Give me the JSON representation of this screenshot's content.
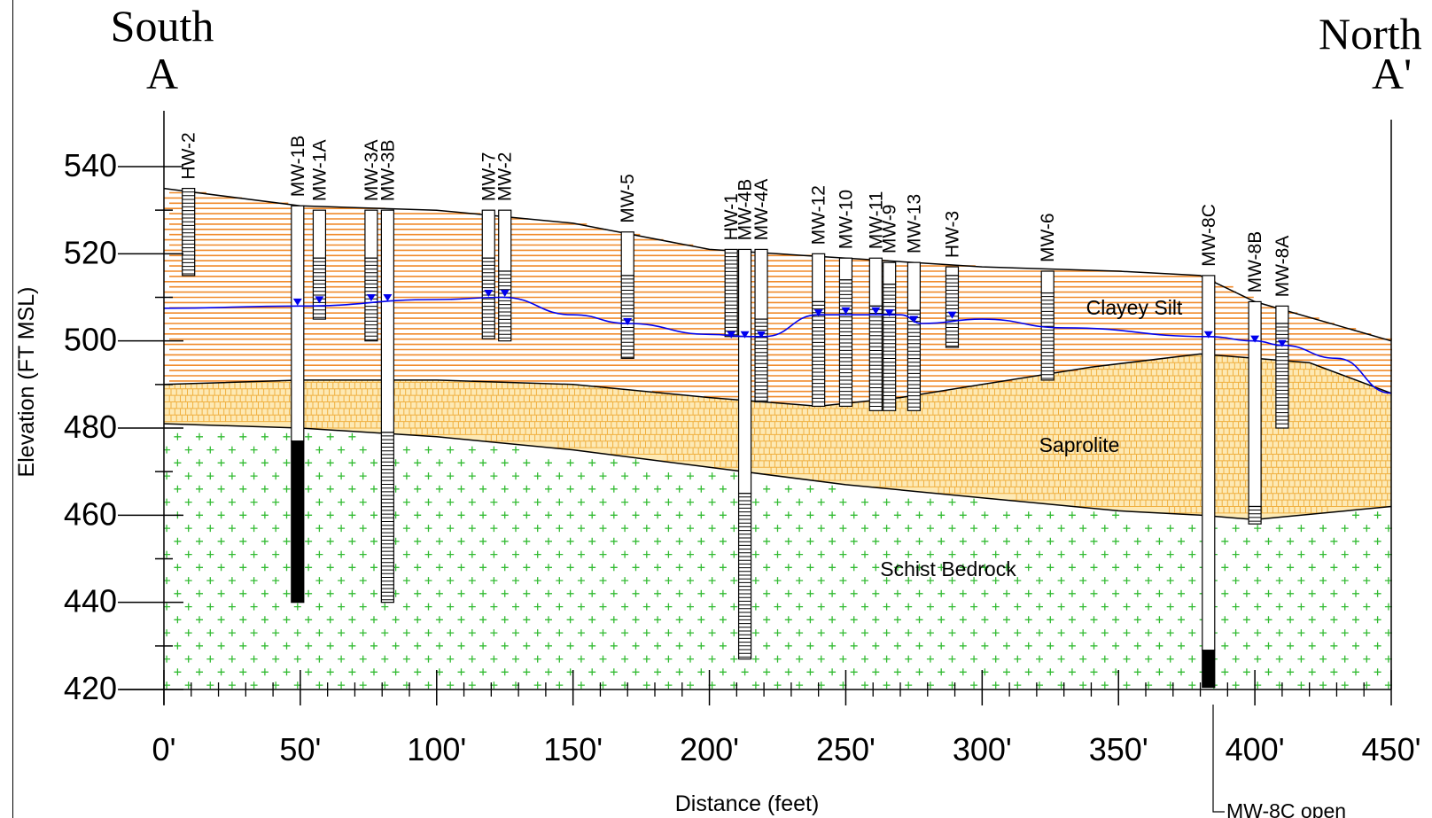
{
  "headings": {
    "south": "South",
    "a": "A",
    "north": "North",
    "a_prime": "A'"
  },
  "axes": {
    "ylabel": "Elevation (FT MSL)",
    "xlabel": "Distance (feet)",
    "y_ticks": [
      "540",
      "520",
      "500",
      "480",
      "460",
      "440",
      "420"
    ],
    "x_ticks": [
      "0'",
      "50'",
      "100'",
      "150'",
      "200'",
      "250'",
      "300'",
      "350'",
      "400'",
      "450'"
    ]
  },
  "layers": {
    "clayey_silt": "Clayey Silt",
    "saprolite": "Saprolite",
    "bedrock": "Schist Bedrock"
  },
  "note": "MW-8C open",
  "colors": {
    "silt": "#f08a2a",
    "saprolite_fill": "#fde9b4",
    "saprolite_brick": "#f0b040",
    "bedrock_cross": "#33bb33",
    "water_table": "#0000ee",
    "casing": "#000000"
  },
  "chart_data": {
    "type": "cross-section",
    "x_unit": "feet",
    "y_unit": "ft MSL",
    "xlim": [
      0,
      450
    ],
    "ylim": [
      420,
      540
    ],
    "ground_surface": [
      [
        0,
        535
      ],
      [
        50,
        531
      ],
      [
        100,
        530
      ],
      [
        150,
        527
      ],
      [
        200,
        521
      ],
      [
        250,
        519
      ],
      [
        300,
        517
      ],
      [
        350,
        516
      ],
      [
        380,
        515
      ],
      [
        400,
        509
      ],
      [
        450,
        500
      ]
    ],
    "silt_base": [
      [
        0,
        490
      ],
      [
        50,
        491
      ],
      [
        100,
        491
      ],
      [
        150,
        490
      ],
      [
        200,
        487
      ],
      [
        240,
        485
      ],
      [
        270,
        487
      ],
      [
        300,
        490
      ],
      [
        340,
        494
      ],
      [
        380,
        497
      ],
      [
        420,
        495
      ],
      [
        450,
        488
      ]
    ],
    "bedrock_top": [
      [
        0,
        481
      ],
      [
        50,
        480
      ],
      [
        100,
        478
      ],
      [
        150,
        475
      ],
      [
        200,
        471
      ],
      [
        250,
        467
      ],
      [
        300,
        464
      ],
      [
        350,
        461
      ],
      [
        380,
        460
      ],
      [
        400,
        459
      ],
      [
        450,
        462
      ]
    ],
    "water_table": [
      [
        0,
        507.5
      ],
      [
        50,
        508
      ],
      [
        100,
        509.5
      ],
      [
        124,
        510
      ],
      [
        150,
        506
      ],
      [
        170,
        504
      ],
      [
        200,
        501.5
      ],
      [
        215,
        501
      ],
      [
        220,
        501
      ],
      [
        240,
        506
      ],
      [
        255,
        506
      ],
      [
        270,
        506
      ],
      [
        278,
        504
      ],
      [
        300,
        505
      ],
      [
        330,
        503
      ],
      [
        383,
        501
      ],
      [
        400,
        500
      ],
      [
        410,
        499
      ],
      [
        430,
        496
      ],
      [
        450,
        488
      ]
    ],
    "wells": [
      {
        "name": "HW-2",
        "x": 9,
        "top": 535,
        "screen_top": 535,
        "bottom": 515,
        "water": null
      },
      {
        "name": "MW-1B",
        "x": 49,
        "top": 531,
        "screen_top": 477,
        "bottom": 440,
        "water": 508.5,
        "open": true
      },
      {
        "name": "MW-1A",
        "x": 57,
        "top": 530,
        "screen_top": 519,
        "bottom": 505,
        "water": 509
      },
      {
        "name": "MW-3A",
        "x": 76,
        "top": 530,
        "screen_top": 519,
        "bottom": 500,
        "water": 509.5
      },
      {
        "name": "MW-3B",
        "x": 82,
        "top": 530,
        "screen_top": 479,
        "bottom": 440,
        "water": 509.5
      },
      {
        "name": "MW-7",
        "x": 119,
        "top": 530,
        "screen_top": 519,
        "bottom": 500.5,
        "water": 510.5
      },
      {
        "name": "MW-2",
        "x": 125,
        "top": 530,
        "screen_top": 516,
        "bottom": 500,
        "water": 510.5
      },
      {
        "name": "MW-5",
        "x": 170,
        "top": 525,
        "screen_top": 515,
        "bottom": 496,
        "water": 504
      },
      {
        "name": "HW-1",
        "x": 208,
        "top": 521,
        "screen_top": 521,
        "bottom": 501,
        "water": 501
      },
      {
        "name": "MW-4B",
        "x": 213,
        "top": 521,
        "screen_top": 465,
        "bottom": 427,
        "water": 501
      },
      {
        "name": "MW-4A",
        "x": 219,
        "top": 521,
        "screen_top": 505,
        "bottom": 486,
        "water": 501
      },
      {
        "name": "MW-12",
        "x": 240,
        "top": 520,
        "screen_top": 509,
        "bottom": 485,
        "water": 506
      },
      {
        "name": "MW-10",
        "x": 250,
        "top": 519,
        "screen_top": 514,
        "bottom": 485,
        "water": 506.5
      },
      {
        "name": "MW-11",
        "x": 261,
        "top": 519,
        "screen_top": 508,
        "bottom": 484,
        "water": 506.5
      },
      {
        "name": "MW-9",
        "x": 266,
        "top": 518,
        "screen_top": 513,
        "bottom": 484,
        "water": 506
      },
      {
        "name": "MW-13",
        "x": 275,
        "top": 518,
        "screen_top": 507,
        "bottom": 484,
        "water": 504.5
      },
      {
        "name": "HW-3",
        "x": 289,
        "top": 517,
        "screen_top": 515,
        "bottom": 498.5,
        "water": 505.5
      },
      {
        "name": "MW-6",
        "x": 324,
        "top": 516,
        "screen_top": 511,
        "bottom": 491,
        "water": null
      },
      {
        "name": "MW-8C",
        "x": 383,
        "top": 515,
        "screen_top": 429,
        "bottom": 420.5,
        "water": 501,
        "open": true
      },
      {
        "name": "MW-8B",
        "x": 400,
        "top": 509,
        "screen_top": 462,
        "bottom": 458,
        "water": 500
      },
      {
        "name": "MW-8A",
        "x": 410,
        "top": 508,
        "screen_top": 504,
        "bottom": 480,
        "water": 499
      }
    ]
  }
}
